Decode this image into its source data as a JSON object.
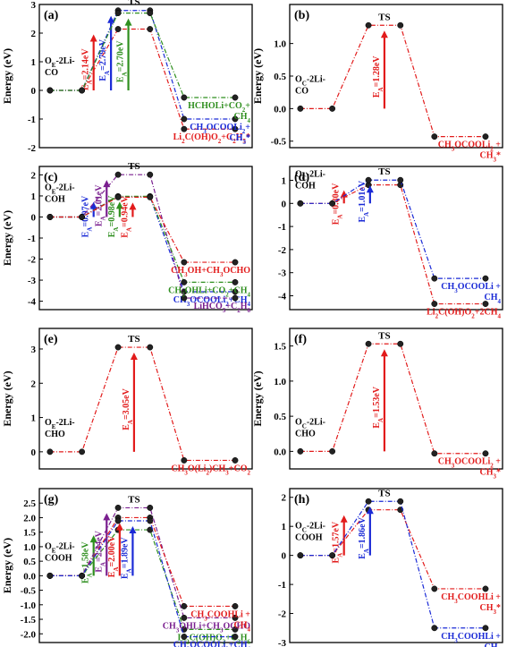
{
  "chart_data": [
    {
      "panel": "(a)",
      "type": "line",
      "ylabel": "Energy (eV)",
      "ylim": [
        -2,
        3
      ],
      "yticks": [
        -2,
        -1,
        0,
        1,
        2,
        3
      ],
      "ts_label": "TS",
      "start": {
        "text": [
          "O",
          "E",
          "-2Li-",
          "CO"
        ]
      },
      "series": [
        {
          "color": "#e21b1b",
          "ts": 2.14,
          "final": -1.35,
          "ea": "E",
          "ea_sub": "A",
          "ea_val": "=2.14eV",
          "product": [
            [
              "Li",
              "2",
              "C(OH)O",
              "2",
              "+C",
              "2",
              "H",
              "5",
              "*"
            ]
          ]
        },
        {
          "color": "#1a2ad6",
          "ts": 2.79,
          "final": -1.0,
          "ea": "E",
          "ea_sub": "A",
          "ea_val": "=2.79eV",
          "product": [
            [
              "CH",
              "3",
              "OCOOLi",
              "2",
              "+"
            ],
            [
              "CH",
              "3",
              "*"
            ]
          ]
        },
        {
          "color": "#2f8f1f",
          "ts": 2.7,
          "final": -0.25,
          "ea": "E",
          "ea_sub": "A",
          "ea_val": "=2.70eV",
          "product": [
            [
              "HCHOLi+CO",
              "2",
              "+"
            ],
            [
              "CH",
              "4",
              ""
            ]
          ]
        }
      ]
    },
    {
      "panel": "(b)",
      "type": "line",
      "ylabel": "Energy (eV)",
      "ylim": [
        -0.6,
        1.6
      ],
      "yticks": [
        -0.5,
        0.0,
        0.5,
        1.0
      ],
      "ts_label": "TS",
      "start": {
        "text": [
          "O",
          "C",
          "-2Li-",
          "CO"
        ]
      },
      "series": [
        {
          "color": "#e21b1b",
          "ts": 1.28,
          "final": -0.43,
          "ea": "E",
          "ea_sub": "A",
          "ea_val": "=1.28eV",
          "product": [
            [
              "CH",
              "3",
              "OCOOLi",
              "2",
              " +"
            ],
            [
              "CH",
              "3",
              "*"
            ]
          ]
        }
      ]
    },
    {
      "panel": "(c)",
      "type": "line",
      "ylabel": "Energy (eV)",
      "ylim": [
        -4.4,
        2.4
      ],
      "yticks": [
        -4,
        -3,
        -2,
        -1,
        0,
        1,
        2
      ],
      "ts_label": "TS",
      "start": {
        "text": [
          "O",
          "E",
          "-2Li-",
          "COH"
        ]
      },
      "series": [
        {
          "color": "#1a2ad6",
          "ts": 0.97,
          "final": -3.55,
          "ea": "E",
          "ea_sub": "A",
          "ea_val": "=0.97eV",
          "product": [
            [
              "CH",
              "3",
              "OCOOLi",
              "2",
              "+CH",
              "4",
              ""
            ]
          ]
        },
        {
          "color": "#7a1f8f",
          "ts": 2.01,
          "final": -3.85,
          "ea": "E",
          "ea_sub": "A",
          "ea_val": "=2.01eV",
          "product": [
            [
              "LiHCO",
              "3",
              "+C",
              "2",
              "H",
              "6",
              ""
            ]
          ]
        },
        {
          "color": "#2f8f1f",
          "ts": 0.98,
          "final": -3.1,
          "ea": "E",
          "ea_sub": "A",
          "ea_val": "=0.98eV",
          "product": [
            [
              "CH",
              "3",
              "OHLi+CO",
              "2",
              "+CH",
              "4",
              ""
            ]
          ]
        },
        {
          "color": "#e21b1b",
          "ts": 0.94,
          "final": -2.15,
          "ea": "E",
          "ea_sub": "A",
          "ea_val": "=0.94eV",
          "product": [
            [
              "CH",
              "3",
              "OH+CH",
              "3",
              "OCHO"
            ]
          ]
        }
      ]
    },
    {
      "panel": "(d)",
      "type": "line",
      "ylabel": "",
      "ylim": [
        -4.6,
        1.6
      ],
      "yticks": [
        -4,
        -3,
        -2,
        -1,
        0,
        1
      ],
      "ts_label": "TS",
      "start": {
        "text": [
          "O",
          "C",
          "-2Li-",
          "COH"
        ]
      },
      "series": [
        {
          "color": "#e21b1b",
          "ts": 0.8,
          "final": -4.35,
          "ea": "E",
          "ea_sub": "A",
          "ea_val": "=0.80eV",
          "product": [
            [
              "Li",
              "2",
              "C(OH)O",
              "2",
              "+2CH",
              "4",
              ""
            ]
          ]
        },
        {
          "color": "#1a2ad6",
          "ts": 1.01,
          "final": -3.25,
          "ea": "E",
          "ea_sub": "A",
          "ea_val": "=1.01eV",
          "product": [
            [
              "CH",
              "3",
              "OCOOLi +"
            ],
            [
              "CH",
              "4",
              ""
            ]
          ]
        }
      ]
    },
    {
      "panel": "(e)",
      "type": "line",
      "ylabel": "Energy (eV)",
      "ylim": [
        -0.5,
        3.6
      ],
      "yticks": [
        0,
        1,
        2,
        3
      ],
      "ts_label": "TS",
      "start": {
        "text": [
          "O",
          "E",
          "-2Li-",
          "CHO"
        ]
      },
      "series": [
        {
          "color": "#e21b1b",
          "ts": 3.05,
          "final": -0.25,
          "ea": "E",
          "ea_sub": "A",
          "ea_val": "=3.05eV",
          "product": [
            [
              "CH",
              "3",
              "O(Li",
              "2",
              ")CH",
              "3",
              "+CO",
              "2",
              ""
            ]
          ]
        }
      ]
    },
    {
      "panel": "(f)",
      "type": "line",
      "ylabel": "Energy (eV)",
      "ylim": [
        -0.25,
        1.75
      ],
      "yticks": [
        0.0,
        0.5,
        1.0,
        1.5
      ],
      "ts_label": "TS",
      "start": {
        "text": [
          "O",
          "C",
          "-2Li-",
          "CHO"
        ]
      },
      "series": [
        {
          "color": "#e21b1b",
          "ts": 1.53,
          "final": -0.03,
          "ea": "E",
          "ea_sub": "A",
          "ea_val": "=1.53eV",
          "product": [
            [
              "CH",
              "3",
              "OCOOLi",
              "2",
              " +"
            ],
            [
              "CH",
              "3",
              "*"
            ]
          ]
        }
      ]
    },
    {
      "panel": "(g)",
      "type": "line",
      "ylabel": "Energy (eV)",
      "ylim": [
        -2.3,
        3.0
      ],
      "yticks": [
        -2.0,
        -1.5,
        -1.0,
        -0.5,
        0.0,
        0.5,
        1.0,
        1.5,
        2.0,
        2.5
      ],
      "ts_label": "TS",
      "start": {
        "text": [
          "O",
          "E",
          "-2Li-",
          "COOH"
        ]
      },
      "series": [
        {
          "color": "#2f8f1f",
          "ts": 1.58,
          "final": -1.85,
          "ea": "E",
          "ea_sub": "A",
          "ea_val": "=1.58eV",
          "product": [
            [
              "Li",
              "2",
              "C(OH)O",
              "2",
              "+C",
              "2",
              "H",
              "6",
              ""
            ]
          ]
        },
        {
          "color": "#7a1f8f",
          "ts": 2.34,
          "final": -1.45,
          "ea": "E",
          "ea_sub": "A",
          "ea_val": "=2.34eV",
          "product": [
            [
              "CH",
              "3",
              "OHLi+CH",
              "3",
              "OCHO"
            ]
          ]
        },
        {
          "color": "#e21b1b",
          "ts": 2.0,
          "final": -1.05,
          "ea": "E",
          "ea_sub": "A",
          "ea_val": "=2.00eV",
          "product": [
            [
              "CH",
              "3",
              "COOHLi +"
            ],
            [
              "CH",
              "4",
              ""
            ]
          ]
        },
        {
          "color": "#1a2ad6",
          "ts": 1.89,
          "final": -2.1,
          "ea": "E",
          "ea_sub": "A",
          "ea_val": "=1.89eV",
          "product": [
            [
              "CH",
              "3",
              "OCOOLi",
              "2",
              "+CH",
              "4",
              ""
            ]
          ]
        }
      ]
    },
    {
      "panel": "(h)",
      "type": "line",
      "ylabel": "",
      "ylim": [
        -3.0,
        2.3
      ],
      "yticks": [
        -3,
        -2,
        -1,
        0,
        1,
        2
      ],
      "ts_label": "TS",
      "start": {
        "text": [
          "O",
          "C",
          "-2Li-",
          "COOH"
        ]
      },
      "series": [
        {
          "color": "#e21b1b",
          "ts": 1.57,
          "final": -1.15,
          "ea": "E",
          "ea_sub": "A",
          "ea_val": "=1.57eV",
          "product": [
            [
              "CH",
              "3",
              "COOHLi +"
            ],
            [
              "CH",
              "3",
              "*"
            ]
          ]
        },
        {
          "color": "#1a2ad6",
          "ts": 1.86,
          "final": -2.5,
          "ea": "E",
          "ea_sub": "A",
          "ea_val": "=1.86eV",
          "product": [
            [
              "CH",
              "3",
              "COOHLi +"
            ],
            [
              "CH",
              "4",
              ""
            ]
          ]
        }
      ]
    }
  ]
}
